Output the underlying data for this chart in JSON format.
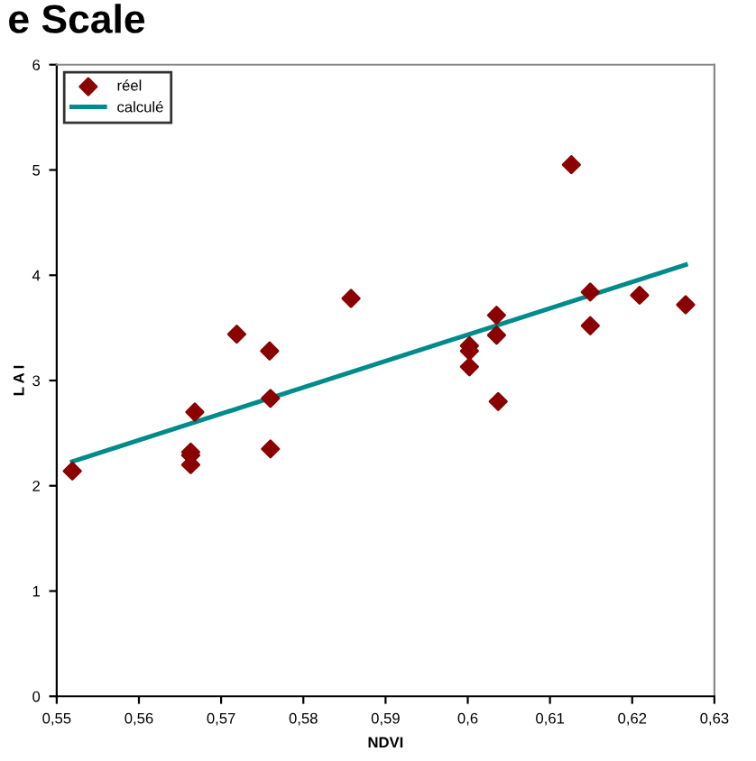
{
  "chart_data": {
    "type": "scatter",
    "title": "e Scale",
    "xlabel": "NDVI",
    "ylabel": "L A I",
    "xlim": [
      0.55,
      0.63
    ],
    "ylim": [
      0,
      6
    ],
    "xticks": [
      {
        "value": 0.55,
        "label": "0,55"
      },
      {
        "value": 0.56,
        "label": "0,56"
      },
      {
        "value": 0.57,
        "label": "0,57"
      },
      {
        "value": 0.58,
        "label": "0,58"
      },
      {
        "value": 0.59,
        "label": "0,59"
      },
      {
        "value": 0.6,
        "label": "0,6"
      },
      {
        "value": 0.61,
        "label": "0,61"
      },
      {
        "value": 0.62,
        "label": "0,62"
      },
      {
        "value": 0.63,
        "label": "0,63"
      }
    ],
    "yticks": [
      0,
      1,
      2,
      3,
      4,
      5,
      6
    ],
    "grid": false,
    "legend": "top left",
    "series": [
      {
        "name": "réel",
        "color": "#8b0000",
        "marker": "diamond",
        "x": [
          0.5519,
          0.5668,
          0.5663,
          0.5663,
          0.5663,
          0.5719,
          0.5759,
          0.576,
          0.576,
          0.5858,
          0.6002,
          0.6002,
          0.6002,
          0.6035,
          0.6035,
          0.6037,
          0.6126,
          0.6149,
          0.6149,
          0.6209,
          0.6265
        ],
        "values": [
          2.14,
          2.7,
          2.32,
          2.29,
          2.2,
          3.44,
          3.28,
          2.83,
          2.35,
          3.78,
          3.33,
          3.28,
          3.13,
          3.62,
          3.43,
          2.8,
          5.05,
          3.84,
          3.52,
          3.81,
          3.72
        ]
      },
      {
        "name": "calculé",
        "type": "line",
        "color": "#008b8b",
        "marker": "none",
        "x": [
          0.5519,
          0.6265
        ],
        "values": [
          2.23,
          4.1
        ]
      }
    ]
  }
}
